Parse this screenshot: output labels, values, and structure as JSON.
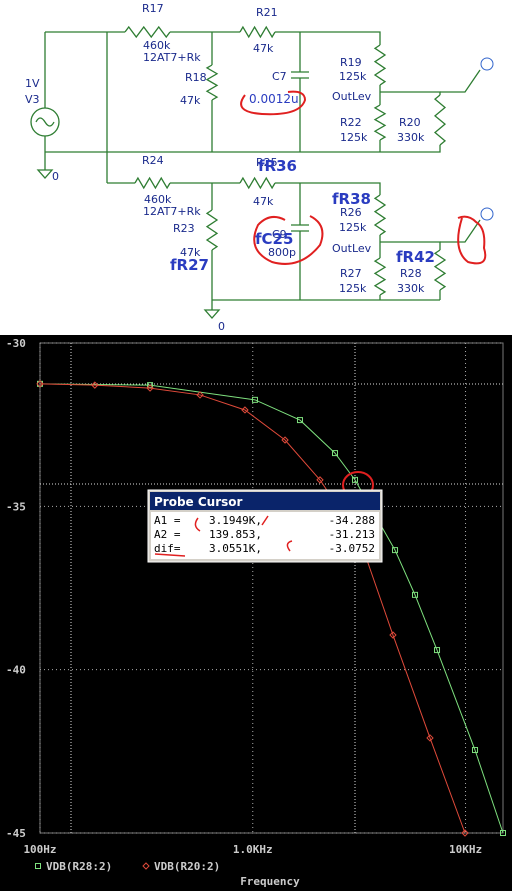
{
  "schematic": {
    "labels": [
      "R17",
      "460k",
      "12AT7+Rk",
      "R21",
      "47k",
      "R18",
      "47k",
      "C7",
      "0.0012u",
      "R19",
      "125k",
      "OutLev",
      "R22",
      "125k",
      "R20",
      "330k",
      "1V",
      "V3",
      "0",
      "R24",
      "460k",
      "12AT7+Rk",
      "R25",
      "fR36",
      "47k",
      "R23",
      "47k",
      "fR27",
      "C9",
      "fC25",
      "800p",
      "fR38",
      "R26",
      "125k",
      "OutLev",
      "fR42",
      "R28",
      "330k",
      "R27",
      "125k",
      "0"
    ]
  },
  "chart_data": {
    "type": "line",
    "x_label": "Frequency",
    "xscale": "log",
    "xlim": [
      100,
      15000
    ],
    "xticks": [
      {
        "value": 100,
        "label": "100Hz"
      },
      {
        "value": 1000,
        "label": "1.0KHz"
      },
      {
        "value": 10000,
        "label": "10KHz"
      }
    ],
    "ylim": [
      -45,
      -30
    ],
    "yticks": [
      -30,
      -35,
      -40,
      -45
    ],
    "grid": true,
    "series": [
      {
        "name": "VDB(R28:2)",
        "color": "#7ee07e",
        "marker": "square",
        "x": [
          100,
          329,
          1024,
          1667,
          2435,
          3023,
          4662,
          5788,
          7345,
          11080,
          15000
        ],
        "values": [
          -31.25,
          -31.29,
          -31.74,
          -32.36,
          -33.37,
          -34.19,
          -36.34,
          -37.71,
          -39.4,
          -42.46,
          -45.0
        ]
      },
      {
        "name": "VDB(R20:2)",
        "color": "#e04a3a",
        "marker": "diamond",
        "x": [
          100,
          181,
          329,
          565,
          919,
          1418,
          2070,
          3192,
          4560,
          6808,
          9943
        ],
        "values": [
          -31.25,
          -31.29,
          -31.38,
          -31.59,
          -32.05,
          -32.97,
          -34.19,
          -36.03,
          -38.94,
          -42.09,
          -45.0
        ]
      }
    ]
  },
  "probe_cursor": {
    "title": "Probe Cursor",
    "rows": [
      [
        "A1 =",
        "3.1949K,",
        "-34.288"
      ],
      [
        "A2 =",
        "139.853,",
        "-31.213"
      ],
      [
        "dif=",
        "3.0551K,",
        "-3.0752"
      ]
    ]
  }
}
